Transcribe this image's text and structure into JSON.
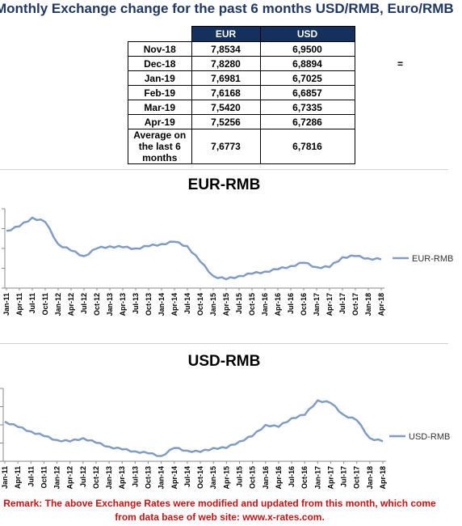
{
  "header": {
    "title": "Monthly Exchange change for the past 6 months USD/RMB, Euro/RMB"
  },
  "table": {
    "columns": [
      "EUR",
      "USD"
    ],
    "rows": [
      {
        "label": "Nov-18",
        "eur": "7,8534",
        "usd": "6,9500"
      },
      {
        "label": "Dec-18",
        "eur": "7,8280",
        "usd": "6,8894"
      },
      {
        "label": "Jan-19",
        "eur": "7,6981",
        "usd": "6,7025"
      },
      {
        "label": "Feb-19",
        "eur": "7,6168",
        "usd": "6,6857"
      },
      {
        "label": "Mar-19",
        "eur": "7,5420",
        "usd": "6,7335"
      },
      {
        "label": "Apr-19",
        "eur": "7,5256",
        "usd": "6,7286"
      }
    ],
    "average": {
      "label_line1": "Average on",
      "label_line2": "the last 6",
      "label_line3": "months",
      "eur": "7,6773",
      "usd": "6,7816"
    },
    "side_symbol": "="
  },
  "remark": {
    "line1": "Remark: The above Exchange Rates were modified and updated from this month, which come",
    "line2": "from data base of web site: www.x-rates.com."
  },
  "colors": {
    "line": "#7f9cc4",
    "header_bg": "#14305c",
    "title": "#1f3864",
    "remark": "#cc1111"
  },
  "chart_data": [
    {
      "type": "line",
      "title": "EUR-RMB",
      "categories": [
        "Jan-11",
        "Apr-11",
        "Jul-11",
        "Oct-11",
        "Jan-12",
        "Apr-12",
        "Jul-12",
        "Oct-12",
        "Jan-13",
        "Apr-13",
        "Jul-13",
        "Oct-13",
        "Jan-14",
        "Apr-14",
        "Jul-14",
        "Oct-14",
        "Jan-15",
        "Apr-15",
        "Jul-15",
        "Oct-15",
        "Jan-16",
        "Apr-16",
        "Jul-16",
        "Oct-16",
        "Jan-17",
        "Apr-17",
        "Jul-17",
        "Oct-17",
        "Jan-18",
        "Apr-18"
      ],
      "series": [
        {
          "name": "EUR-RMB",
          "values": [
            9.0,
            9.2,
            9.6,
            9.4,
            8.4,
            8.1,
            7.85,
            8.2,
            8.3,
            8.25,
            8.2,
            8.3,
            8.4,
            8.5,
            8.3,
            7.6,
            6.95,
            6.8,
            6.95,
            7.05,
            7.15,
            7.25,
            7.4,
            7.55,
            7.35,
            7.35,
            7.8,
            7.85,
            7.75,
            7.7
          ]
        }
      ],
      "ylim": [
        6.4,
        10.0
      ],
      "grid": false,
      "legend": "right"
    },
    {
      "type": "line",
      "title": "USD-RMB",
      "categories": [
        "Jan-11",
        "Apr-11",
        "Jul-11",
        "Oct-11",
        "Jan-12",
        "Apr-12",
        "Jul-12",
        "Oct-12",
        "Jan-13",
        "Apr-13",
        "Jul-13",
        "Oct-13",
        "Jan-14",
        "Apr-14",
        "Jul-14",
        "Oct-14",
        "Jan-15",
        "Apr-15",
        "Jul-15",
        "Oct-15",
        "Jan-16",
        "Apr-16",
        "Jul-16",
        "Oct-16",
        "Jan-17",
        "Apr-17",
        "Jul-17",
        "Oct-17",
        "Jan-18",
        "Apr-18"
      ],
      "series": [
        {
          "name": "USD-RMB",
          "values": [
            6.6,
            6.52,
            6.45,
            6.38,
            6.32,
            6.3,
            6.35,
            6.28,
            6.22,
            6.18,
            6.15,
            6.12,
            6.08,
            6.2,
            6.16,
            6.14,
            6.2,
            6.2,
            6.3,
            6.38,
            6.55,
            6.52,
            6.65,
            6.7,
            6.92,
            6.88,
            6.7,
            6.62,
            6.35,
            6.3
          ]
        }
      ],
      "ylim": [
        6.0,
        7.1
      ],
      "grid": false,
      "legend": "right"
    }
  ]
}
